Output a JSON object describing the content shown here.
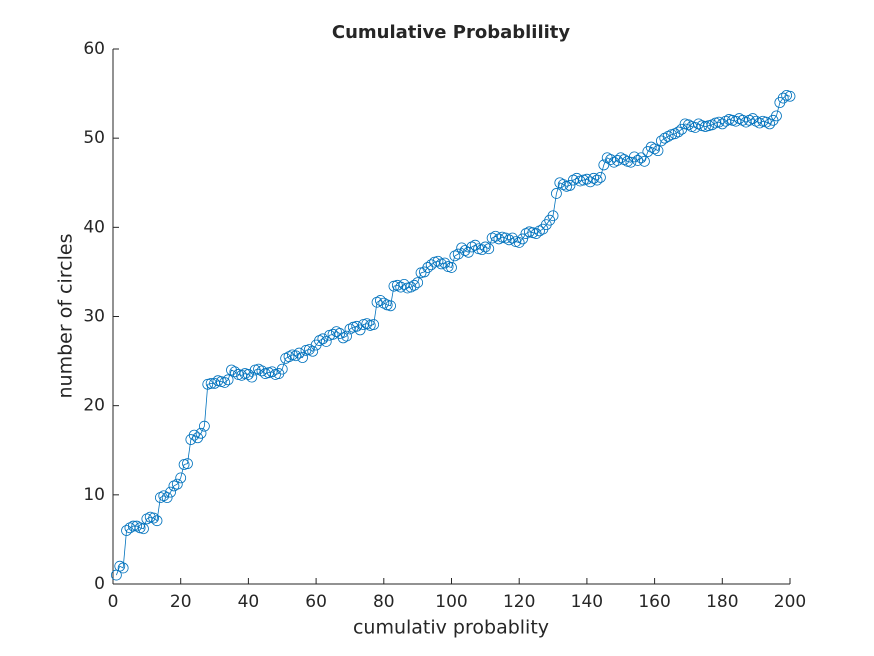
{
  "chart_data": {
    "type": "line",
    "title": "Cumulative Probablility",
    "x_label": "cumulativ probablity",
    "y_label": "number of circles",
    "color": "#0072bd",
    "marker": "o",
    "x": [
      1,
      2,
      3,
      4,
      5,
      6,
      7,
      8,
      9,
      10,
      11,
      12,
      13,
      14,
      15,
      16,
      17,
      18,
      19,
      20,
      21,
      22,
      23,
      24,
      25,
      26,
      27,
      28,
      29,
      30,
      31,
      32,
      33,
      34,
      35,
      36,
      37,
      38,
      39,
      40,
      41,
      42,
      43,
      44,
      45,
      46,
      47,
      48,
      49,
      50,
      51,
      52,
      53,
      54,
      55,
      56,
      57,
      58,
      59,
      60,
      61,
      62,
      63,
      64,
      65,
      66,
      67,
      68,
      69,
      70,
      71,
      72,
      73,
      74,
      75,
      76,
      77,
      78,
      79,
      80,
      81,
      82,
      83,
      84,
      85,
      86,
      87,
      88,
      89,
      90,
      91,
      92,
      93,
      94,
      95,
      96,
      97,
      98,
      99,
      100,
      101,
      102,
      103,
      104,
      105,
      106,
      107,
      108,
      109,
      110,
      111,
      112,
      113,
      114,
      115,
      116,
      117,
      118,
      119,
      120,
      121,
      122,
      123,
      124,
      125,
      126,
      127,
      128,
      129,
      130,
      131,
      132,
      133,
      134,
      135,
      136,
      137,
      138,
      139,
      140,
      141,
      142,
      143,
      144,
      145,
      146,
      147,
      148,
      149,
      150,
      151,
      152,
      153,
      154,
      155,
      156,
      157,
      158,
      159,
      160,
      161,
      162,
      163,
      164,
      165,
      166,
      167,
      168,
      169,
      170,
      171,
      172,
      173,
      174,
      175,
      176,
      177,
      178,
      179,
      180,
      181,
      182,
      183,
      184,
      185,
      186,
      187,
      188,
      189,
      190,
      191,
      192,
      193,
      194,
      195,
      196,
      197,
      198,
      199,
      200
    ],
    "values": [
      1,
      2,
      1.8,
      6,
      6.3,
      6.5,
      6.5,
      6.3,
      6.2,
      7.3,
      7.5,
      7.4,
      7.1,
      9.7,
      9.9,
      9.7,
      10.3,
      11,
      11.2,
      11.9,
      13.4,
      13.5,
      16.2,
      16.7,
      16.4,
      16.9,
      17.7,
      22.4,
      22.5,
      22.5,
      22.8,
      22.7,
      22.6,
      22.9,
      24,
      23.8,
      23.5,
      23.4,
      23.6,
      23.5,
      23.2,
      24,
      24.1,
      23.9,
      23.6,
      23.7,
      23.8,
      23.5,
      23.6,
      24.1,
      25.3,
      25.5,
      25.7,
      25.6,
      25.9,
      25.4,
      26.2,
      26.3,
      26.1,
      26.8,
      27.3,
      27.5,
      27.2,
      27.9,
      28,
      28.3,
      28.1,
      27.6,
      27.8,
      28.6,
      28.8,
      28.9,
      28.5,
      29.1,
      29.2,
      29,
      29.1,
      31.6,
      31.8,
      31.5,
      31.3,
      31.2,
      33.4,
      33.5,
      33.3,
      33.6,
      33.2,
      33.3,
      33.5,
      33.8,
      34.9,
      35,
      35.5,
      35.8,
      36.1,
      36.2,
      35.9,
      36,
      35.6,
      35.5,
      36.8,
      37,
      37.7,
      37.4,
      37.2,
      37.8,
      38,
      37.6,
      37.5,
      37.8,
      37.6,
      38.8,
      39,
      38.7,
      38.9,
      38.8,
      38.6,
      38.8,
      38.4,
      38.3,
      38.7,
      39.3,
      39.5,
      39.4,
      39.3,
      39.6,
      39.8,
      40.3,
      40.8,
      41.3,
      43.8,
      45,
      44.8,
      44.6,
      44.7,
      45.3,
      45.5,
      45.2,
      45.3,
      45.4,
      45.1,
      45.5,
      45.3,
      45.6,
      47,
      47.8,
      47.6,
      47.3,
      47.5,
      47.8,
      47.6,
      47.4,
      47.3,
      47.9,
      47.5,
      47.8,
      47.4,
      48.5,
      49,
      48.8,
      48.6,
      49.7,
      50,
      50.2,
      50.4,
      50.5,
      50.7,
      51,
      51.6,
      51.5,
      51.3,
      51.2,
      51.6,
      51.4,
      51.3,
      51.4,
      51.5,
      51.7,
      51.8,
      51.6,
      51.9,
      52.1,
      52,
      51.9,
      52.2,
      52,
      51.8,
      52,
      52.2,
      51.9,
      51.7,
      51.9,
      51.8,
      51.6,
      52,
      52.5,
      54,
      54.5,
      54.8,
      54.7
    ],
    "xlim": [
      0,
      200
    ],
    "xticks": [
      0,
      20,
      40,
      60,
      80,
      100,
      120,
      140,
      160,
      180,
      200
    ],
    "ylim": [
      0,
      60
    ],
    "yticks": [
      0,
      10,
      20,
      30,
      40,
      50,
      60
    ]
  }
}
